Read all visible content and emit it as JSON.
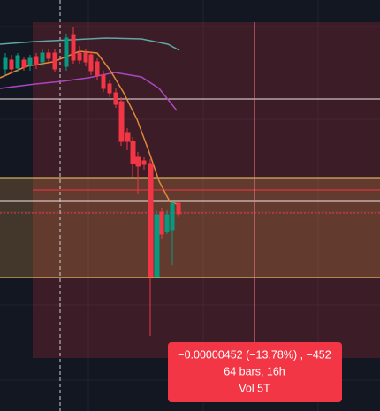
{
  "tooltip": {
    "change": "−0.00000452 (−13.78%) , −452",
    "range": "64 bars, 16h",
    "volume": "Vol 5T"
  }
}
